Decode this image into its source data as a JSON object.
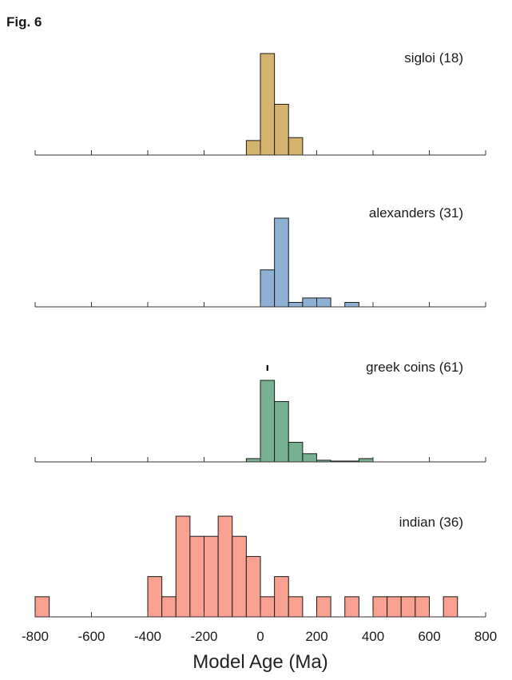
{
  "figure_label": "Fig. 6",
  "chart_data": {
    "type": "histogram",
    "xlabel": "Model Age (Ma)",
    "xlim": [
      -800,
      800
    ],
    "xticks": [
      -800,
      -600,
      -400,
      -200,
      0,
      200,
      400,
      600,
      800
    ],
    "bin_width": 50,
    "panels": [
      {
        "label": "sigloi (18)",
        "color": "#d4b46c",
        "bins": [
          {
            "x0": -50,
            "count": 1
          },
          {
            "x0": 0,
            "count": 7
          },
          {
            "x0": 50,
            "count": 3.5
          },
          {
            "x0": 100,
            "count": 1.2
          }
        ],
        "ymax": 7
      },
      {
        "label": "alexanders (31)",
        "color": "#8fb0d5",
        "bins": [
          {
            "x0": 0,
            "count": 2.5
          },
          {
            "x0": 50,
            "count": 6
          },
          {
            "x0": 100,
            "count": 0.3
          },
          {
            "x0": 150,
            "count": 0.6
          },
          {
            "x0": 200,
            "count": 0.6
          },
          {
            "x0": 300,
            "count": 0.3
          }
        ],
        "ymax": 6
      },
      {
        "label": "greek coins (61)",
        "color": "#77b191",
        "bins": [
          {
            "x0": -50,
            "count": 0.2
          },
          {
            "x0": 0,
            "count": 5
          },
          {
            "x0": 50,
            "count": 3.7
          },
          {
            "x0": 100,
            "count": 1.2
          },
          {
            "x0": 150,
            "count": 0.5
          },
          {
            "x0": 200,
            "count": 0.1
          },
          {
            "x0": 250,
            "count": 0.05
          },
          {
            "x0": 300,
            "count": 0.05
          },
          {
            "x0": 350,
            "count": 0.2
          }
        ],
        "ymax": 5,
        "marker_x": 25
      },
      {
        "label": "indian (36)",
        "color": "#f9a191",
        "bins": [
          {
            "x0": -800,
            "count": 1
          },
          {
            "x0": -400,
            "count": 2
          },
          {
            "x0": -350,
            "count": 1
          },
          {
            "x0": -300,
            "count": 5
          },
          {
            "x0": -250,
            "count": 4
          },
          {
            "x0": -200,
            "count": 4
          },
          {
            "x0": -150,
            "count": 5
          },
          {
            "x0": -100,
            "count": 4
          },
          {
            "x0": -50,
            "count": 3
          },
          {
            "x0": 0,
            "count": 1
          },
          {
            "x0": 50,
            "count": 2
          },
          {
            "x0": 100,
            "count": 1
          },
          {
            "x0": 200,
            "count": 1
          },
          {
            "x0": 300,
            "count": 1
          },
          {
            "x0": 400,
            "count": 1
          },
          {
            "x0": 450,
            "count": 1
          },
          {
            "x0": 500,
            "count": 1
          },
          {
            "x0": 550,
            "count": 1
          },
          {
            "x0": 650,
            "count": 1
          }
        ],
        "ymax": 5
      }
    ]
  }
}
